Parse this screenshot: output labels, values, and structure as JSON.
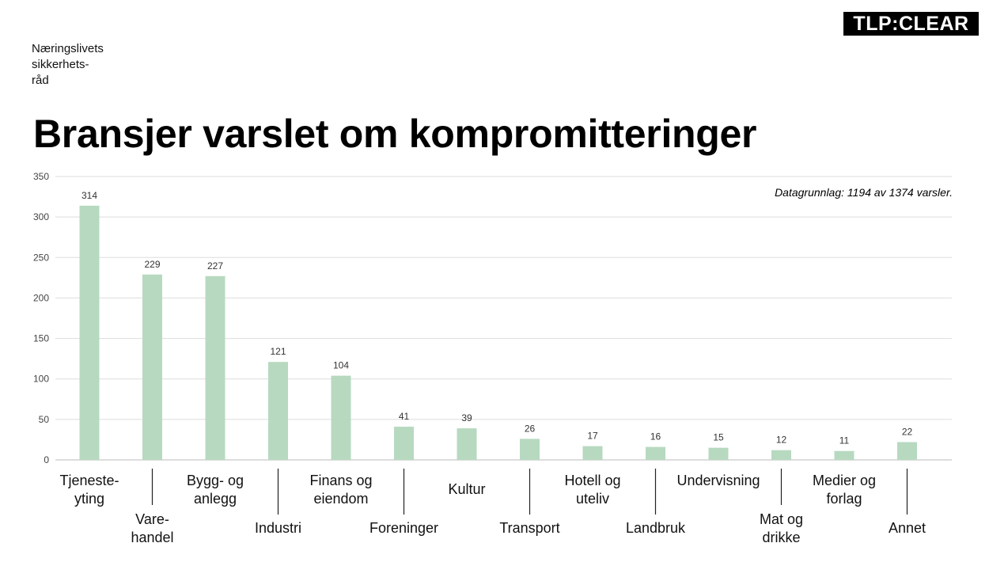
{
  "header": {
    "organization": "Næringslivets\nsikkerhets-\nråd",
    "tlp_label": "TLP:CLEAR"
  },
  "chart_data": {
    "type": "bar",
    "title": "Bransjer varslet om kompromitteringer",
    "note": "Datagrunnlag: 1194 av 1374 varsler.",
    "categories": [
      "Tjeneste-\nyting",
      "Vare-\nhandel",
      "Bygg- og\nanlegg",
      "Industri",
      "Finans og\neiendom",
      "Foreninger",
      "Kultur",
      "Transport",
      "Hotell og\nuteliv",
      "Landbruk",
      "Undervisning",
      "Mat og\ndrikke",
      "Medier og\nforlag",
      "Annet"
    ],
    "values": [
      314,
      229,
      227,
      121,
      104,
      41,
      39,
      26,
      17,
      16,
      15,
      12,
      11,
      22
    ],
    "ylim": [
      0,
      350
    ],
    "yticks": [
      0,
      50,
      100,
      150,
      200,
      250,
      300,
      350
    ],
    "grid": true,
    "bar_color": "#b7d9c0",
    "xlabel": "",
    "ylabel": ""
  }
}
